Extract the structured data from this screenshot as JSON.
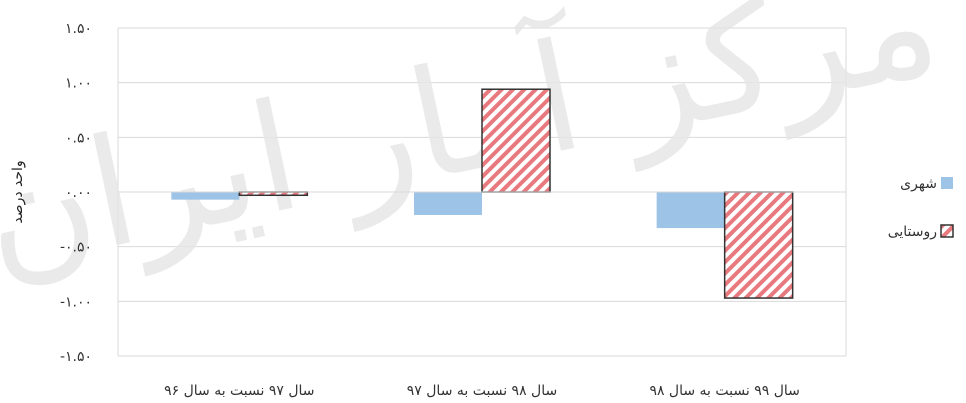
{
  "chart_data": {
    "type": "bar",
    "ylabel": "واحد درصد",
    "yticks": [
      "۱.۵۰",
      "۱.۰۰",
      "۰.۵۰",
      "۰.۰۰",
      "-۰.۵۰",
      "-۱.۰۰",
      "-۱.۵۰"
    ],
    "ylim": [
      -1.5,
      1.5
    ],
    "grid": true,
    "legend_position": "right",
    "categories": [
      "سال ۹۷ نسبت به سال ۹۶",
      "سال ۹۸ نسبت به سال ۹۷",
      "سال ۹۹ نسبت به سال ۹۸"
    ],
    "series": [
      {
        "name": "شهری",
        "values": [
          -0.07,
          -0.21,
          -0.33
        ],
        "color": "#9dc3e6",
        "pattern": "solid"
      },
      {
        "name": "روستایی",
        "values": [
          -0.03,
          0.94,
          -0.97
        ],
        "color": "#e8797f",
        "pattern": "diagonal-hatch"
      }
    ]
  },
  "watermark": "مرکز آمار ایران"
}
